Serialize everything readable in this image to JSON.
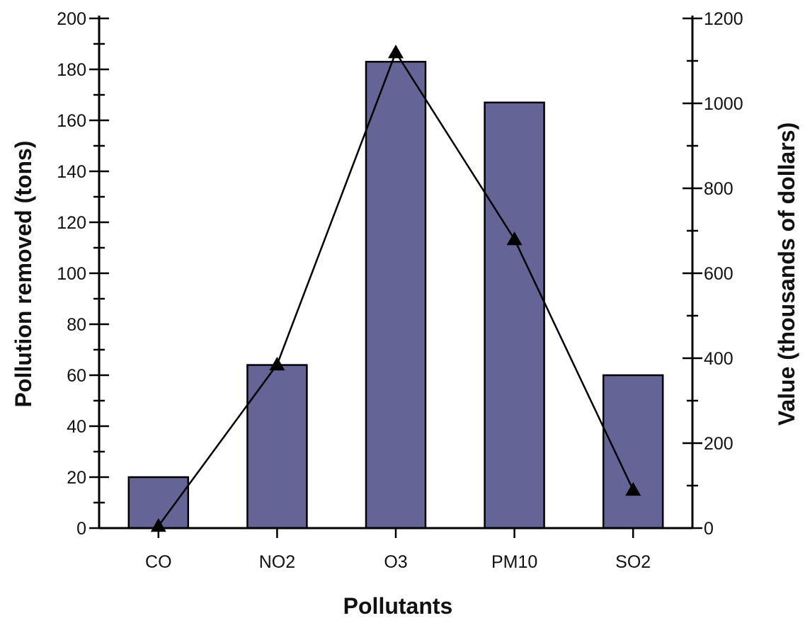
{
  "chart_data": {
    "type": "bar",
    "categories": [
      "CO",
      "NO2",
      "O3",
      "PM10",
      "SO2"
    ],
    "series": [
      {
        "values": [
          20,
          64,
          183,
          167,
          60
        ],
        "kind": "bar",
        "axis": "left",
        "color": "#646496"
      },
      {
        "values": [
          5,
          385,
          1120,
          680,
          90
        ],
        "kind": "line",
        "axis": "right",
        "marker": "triangle",
        "color": "#000000"
      }
    ],
    "xlabel": "Pollutants",
    "ylabel": "Pollution removed (tons)",
    "y2label": "Value (thousands of dollars)",
    "ylim": [
      0,
      200
    ],
    "y2lim": [
      0,
      1200
    ],
    "yticks": [
      "0",
      "20",
      "40",
      "60",
      "80",
      "100",
      "120",
      "140",
      "160",
      "180",
      "200"
    ],
    "y2ticks": [
      "0",
      "200",
      "400",
      "600",
      "800",
      "1000",
      "1200"
    ],
    "grid": false,
    "legend": "none"
  }
}
